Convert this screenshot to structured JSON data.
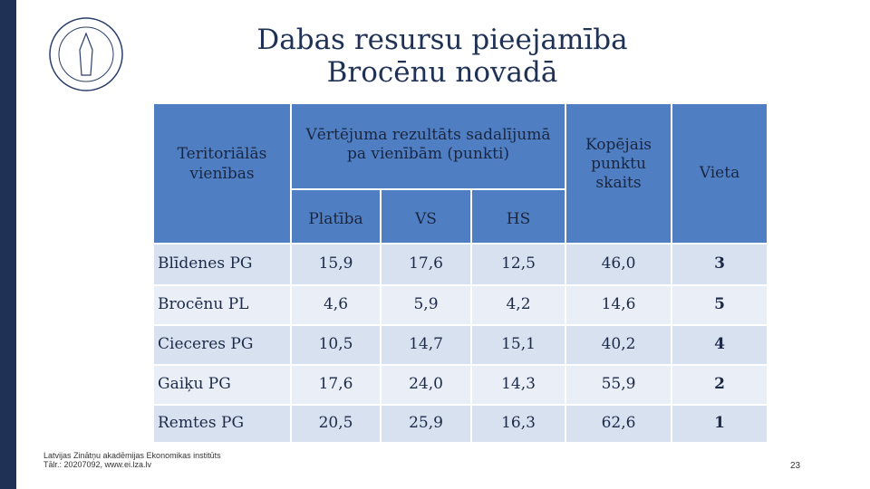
{
  "header": {
    "title_lines": [
      "Dabas resursu pieejamība",
      "Brocēnu novadā"
    ]
  },
  "table": {
    "headers": {
      "unit": "Teritoriālās vienības",
      "group": "Vērtējuma rezultāts sadalījumā pa vienībām (punkti)",
      "subs": [
        "Platība",
        "VS",
        "HS"
      ],
      "total": "Kopējais punktu skaits",
      "rank": "Vieta"
    },
    "rows": [
      [
        "Blīdenes PG",
        "15,9",
        "17,6",
        "12,5",
        "46,0",
        "3"
      ],
      [
        "Brocēnu PL",
        "4,6",
        "5,9",
        "4,2",
        "14,6",
        "5"
      ],
      [
        "Cieceres PG",
        "10,5",
        "14,7",
        "15,1",
        "40,2",
        "4"
      ],
      [
        "Gaiķu PG",
        "17,6",
        "24,0",
        "14,3",
        "55,9",
        "2"
      ],
      [
        "Remtes PG",
        "20,5",
        "25,9",
        "16,3",
        "62,6",
        "1"
      ]
    ]
  },
  "footer": {
    "lines": [
      "Latvijas Zinātņu akadēmijas Ekonomikas institūts",
      "Tālr.: 20207092, www.ei.lza.lv"
    ],
    "page": "23"
  }
}
